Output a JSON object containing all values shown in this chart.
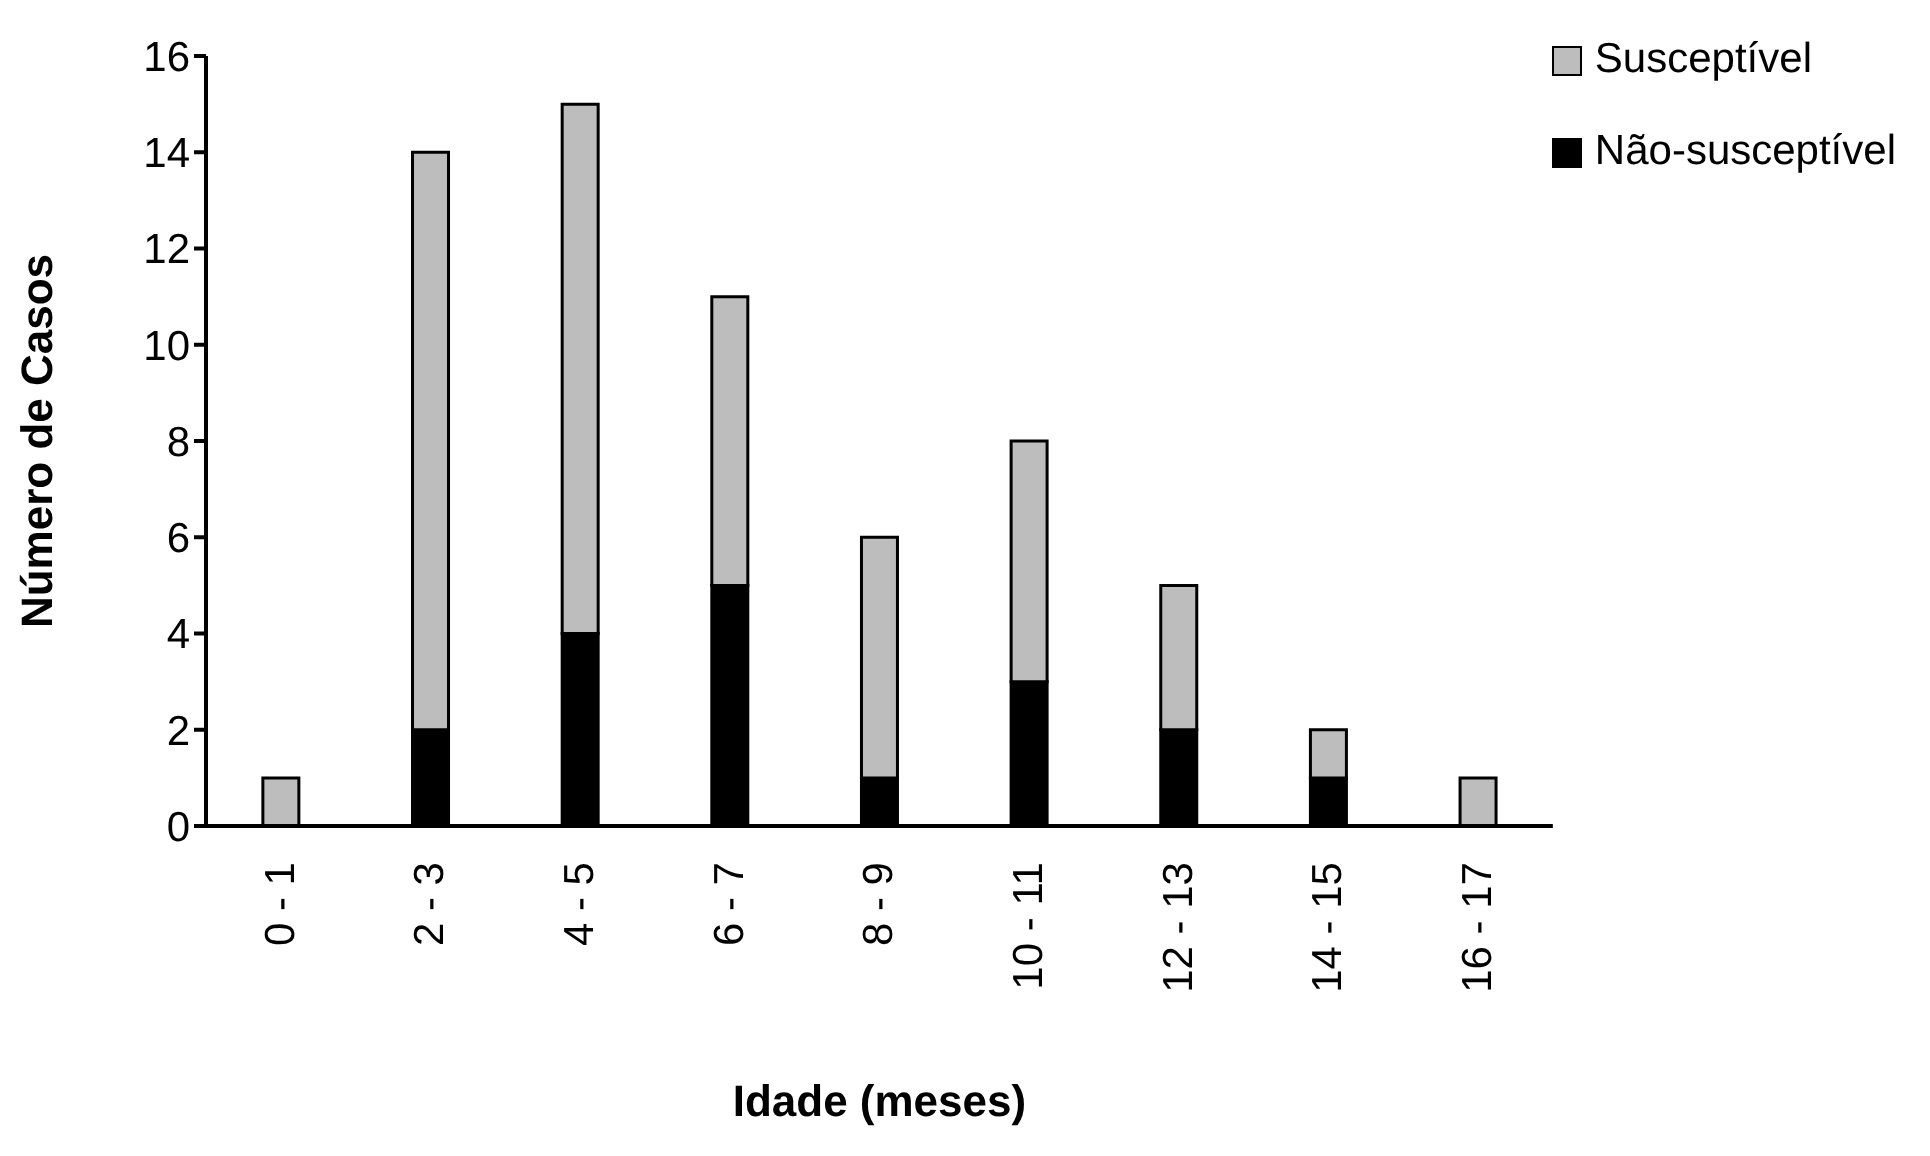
{
  "chart_data": {
    "type": "bar",
    "stacked": true,
    "xlabel": "Idade (meses)",
    "ylabel": "Número de Casos",
    "categories": [
      "0 - 1",
      "2 - 3",
      "4 - 5",
      "6 - 7",
      "8 - 9",
      "10 - 11",
      "12 - 13",
      "14 - 15",
      "16 - 17"
    ],
    "series": [
      {
        "name": "Não-susceptível",
        "color": "#000000",
        "values": [
          0,
          2,
          4,
          5,
          1,
          3,
          2,
          1,
          0
        ]
      },
      {
        "name": "Susceptível",
        "color": "#bdbdbd",
        "values": [
          1,
          12,
          11,
          6,
          5,
          5,
          3,
          1,
          1
        ]
      }
    ],
    "ylim": [
      0,
      16
    ],
    "yticks": [
      0,
      2,
      4,
      6,
      8,
      10,
      12,
      14,
      16
    ],
    "grid": false,
    "legend": "top right"
  }
}
